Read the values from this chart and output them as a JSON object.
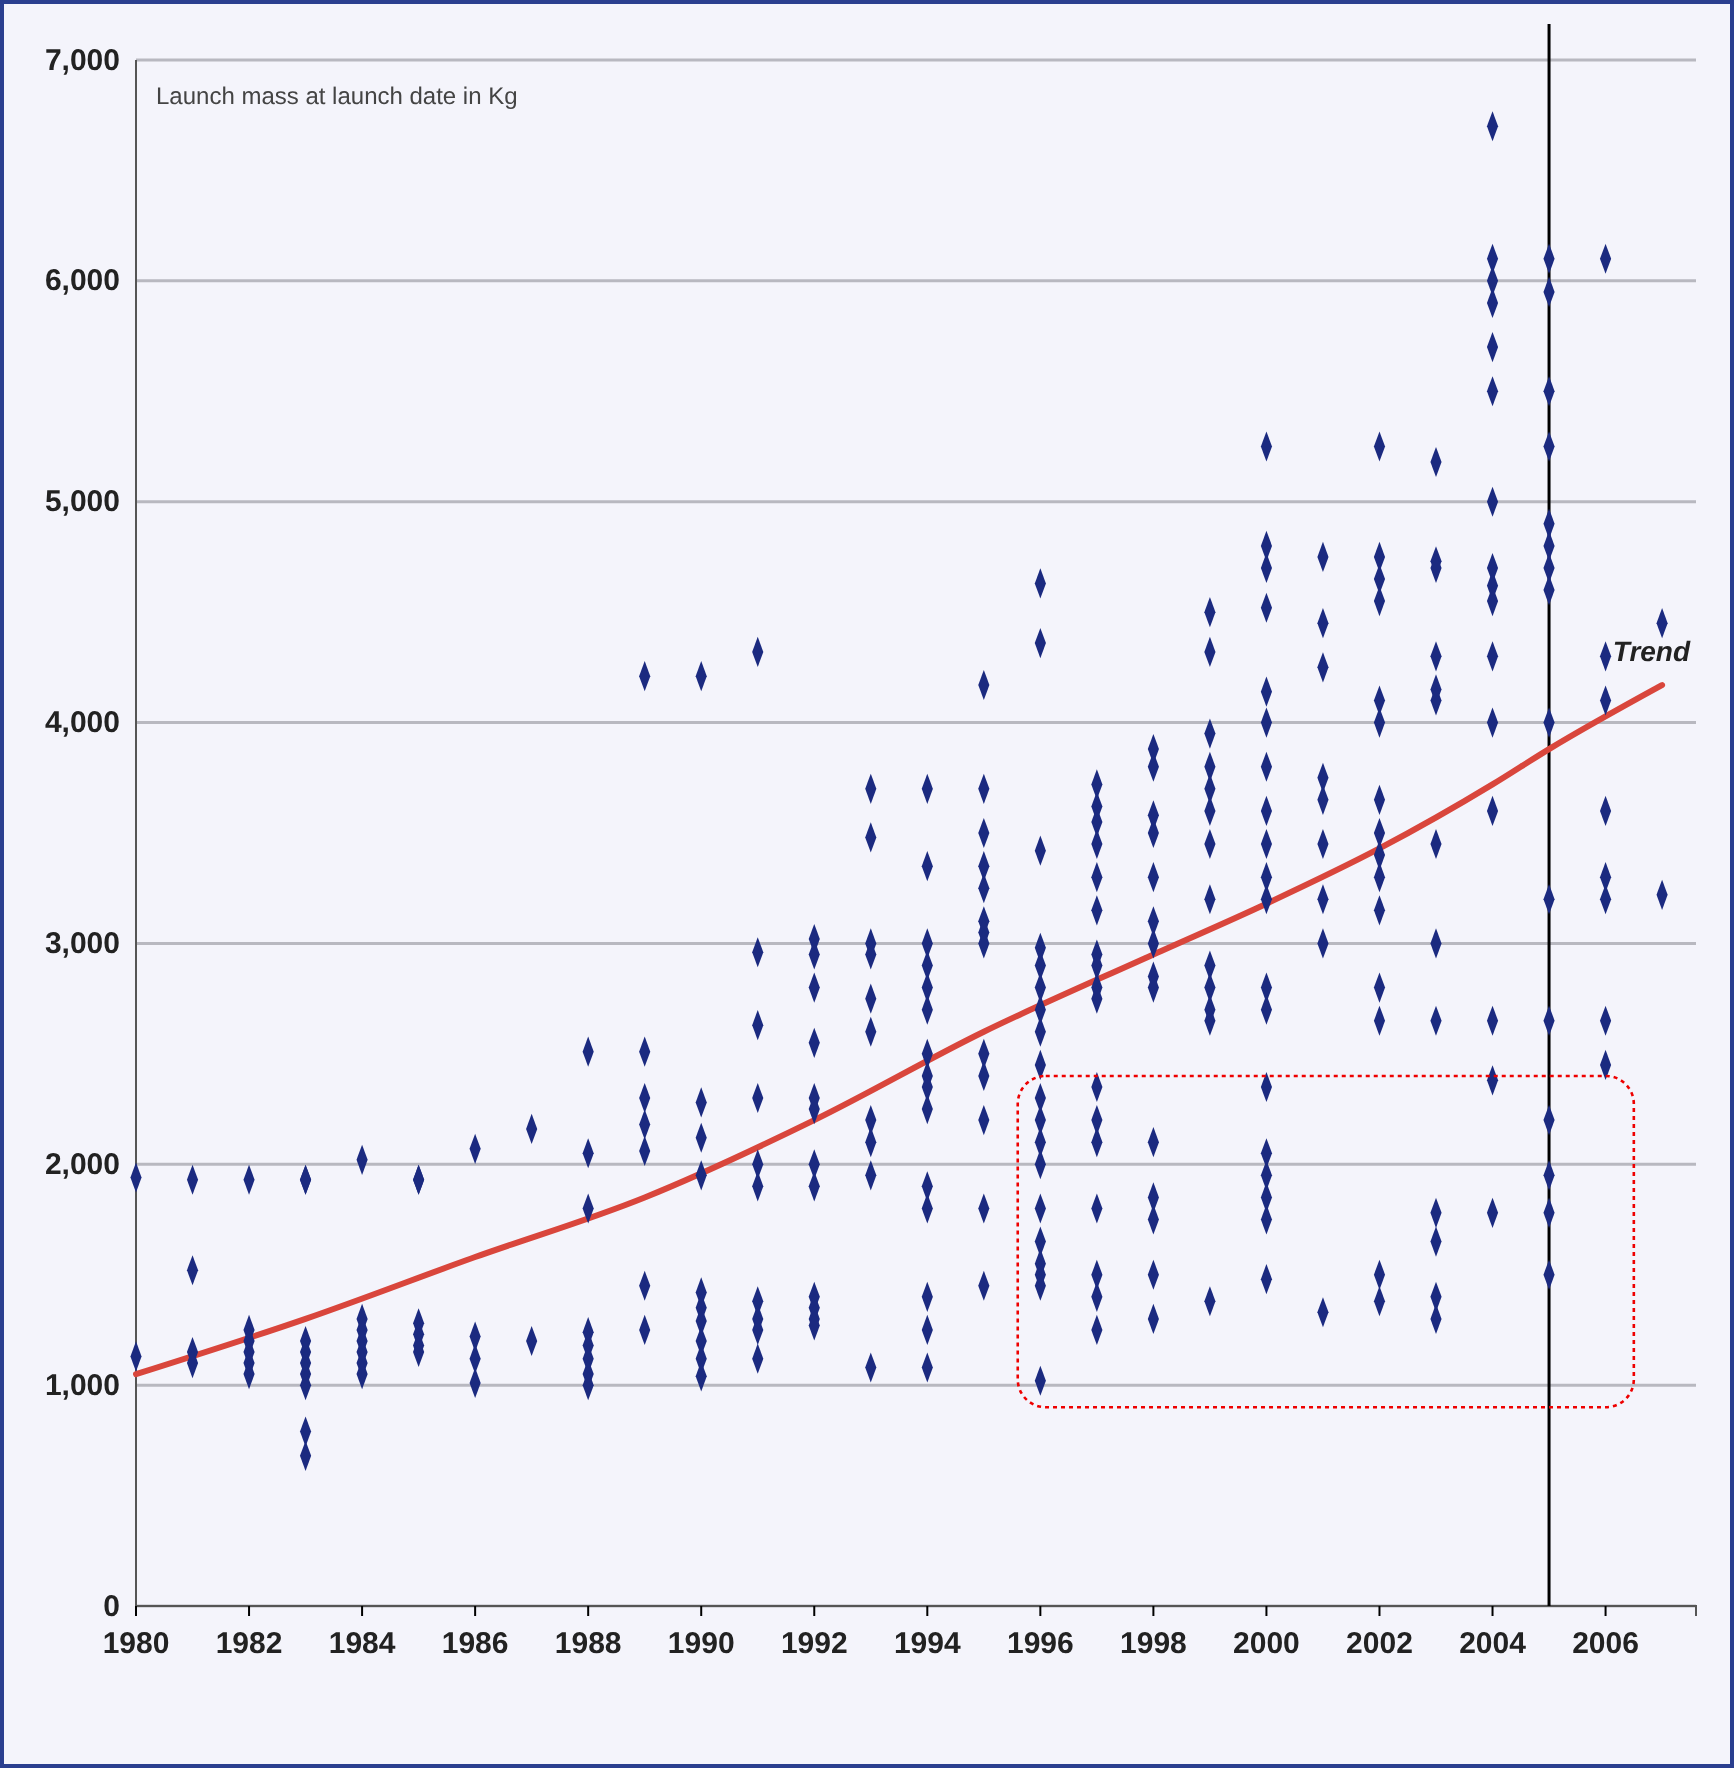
{
  "chart_data": {
    "type": "scatter",
    "annotations": [
      "Launch mass at launch date in Kg"
    ],
    "xlim": [
      1980,
      2007.6
    ],
    "xticks": [
      1980,
      1982,
      1984,
      1986,
      1988,
      1990,
      1992,
      1994,
      1996,
      1998,
      2000,
      2002,
      2004,
      2006
    ],
    "ylim": [
      0,
      7000
    ],
    "yticks": [
      {
        "value": 0,
        "label": "0"
      },
      {
        "value": 1000,
        "label": "1,000"
      },
      {
        "value": 2000,
        "label": "2,000"
      },
      {
        "value": 3000,
        "label": "3,000"
      },
      {
        "value": 4000,
        "label": "4,000"
      },
      {
        "value": 5000,
        "label": "5,000"
      },
      {
        "value": 6000,
        "label": "6,000"
      },
      {
        "value": 7000,
        "label": "7,000"
      }
    ],
    "grid": "y",
    "legend": false,
    "ref_lines": [
      {
        "axis": "x",
        "value": 2005,
        "color": "#000000"
      }
    ],
    "series": [
      {
        "color": "#1b2a80",
        "marker": "diamond",
        "x": [
          1980,
          1980,
          1981,
          1981,
          1981,
          1981,
          1982,
          1982,
          1982,
          1982,
          1982,
          1982,
          1983,
          1983,
          1983,
          1983,
          1983,
          1983,
          1983,
          1983,
          1983,
          1984,
          1984,
          1984,
          1984,
          1984,
          1984,
          1984,
          1985,
          1985,
          1985,
          1985,
          1985,
          1985,
          1986,
          1986,
          1986,
          1986,
          1987,
          1987,
          1988,
          1988,
          1988,
          1988,
          1988,
          1988,
          1988,
          1988,
          1989,
          1989,
          1989,
          1989,
          1989,
          1989,
          1989,
          1990,
          1990,
          1990,
          1990,
          1990,
          1990,
          1990,
          1990,
          1990,
          1990,
          1991,
          1991,
          1991,
          1991,
          1991,
          1991,
          1991,
          1991,
          1991,
          1991,
          1992,
          1992,
          1992,
          1992,
          1992,
          1992,
          1992,
          1992,
          1992,
          1992,
          1992,
          1992,
          1993,
          1993,
          1993,
          1993,
          1993,
          1993,
          1993,
          1993,
          1993,
          1993,
          1994,
          1994,
          1994,
          1994,
          1994,
          1994,
          1994,
          1994,
          1994,
          1994,
          1994,
          1994,
          1994,
          1994,
          1994,
          1995,
          1995,
          1995,
          1995,
          1995,
          1995,
          1995,
          1995,
          1995,
          1995,
          1995,
          1995,
          1995,
          1996,
          1996,
          1996,
          1996,
          1996,
          1996,
          1996,
          1996,
          1996,
          1996,
          1996,
          1996,
          1996,
          1996,
          1996,
          1996,
          1996,
          1996,
          1996,
          1997,
          1997,
          1997,
          1997,
          1997,
          1997,
          1997,
          1997,
          1997,
          1997,
          1997,
          1997,
          1997,
          1997,
          1997,
          1997,
          1997,
          1998,
          1998,
          1998,
          1998,
          1998,
          1998,
          1998,
          1998,
          1998,
          1998,
          1998,
          1998,
          1998,
          1998,
          1999,
          1999,
          1999,
          1999,
          1999,
          1999,
          1999,
          1999,
          1999,
          1999,
          1999,
          1999,
          1999,
          2000,
          2000,
          2000,
          2000,
          2000,
          2000,
          2000,
          2000,
          2000,
          2000,
          2000,
          2000,
          2000,
          2000,
          2000,
          2000,
          2000,
          2000,
          2000,
          2001,
          2001,
          2001,
          2001,
          2001,
          2001,
          2001,
          2001,
          2001,
          2002,
          2002,
          2002,
          2002,
          2002,
          2002,
          2002,
          2002,
          2002,
          2002,
          2002,
          2002,
          2002,
          2002,
          2002,
          2003,
          2003,
          2003,
          2003,
          2003,
          2003,
          2003,
          2003,
          2003,
          2003,
          2003,
          2003,
          2003,
          2004,
          2004,
          2004,
          2004,
          2004,
          2004,
          2004,
          2004,
          2004,
          2004,
          2004,
          2004,
          2004,
          2004,
          2004,
          2004,
          2005,
          2005,
          2005,
          2005,
          2005,
          2005,
          2005,
          2005,
          2005,
          2005,
          2005,
          2005,
          2005,
          2005,
          2005,
          2006,
          2006,
          2006,
          2006,
          2006,
          2006,
          2006,
          2006,
          2007,
          2007
        ],
        "values": [
          1940,
          1130,
          1930,
          1520,
          1150,
          1100,
          1930,
          1250,
          1200,
          1150,
          1100,
          1050,
          1930,
          1200,
          1150,
          1100,
          1050,
          1000,
          790,
          680,
          1930,
          1300,
          1250,
          1200,
          1150,
          1100,
          1050,
          2020,
          1930,
          1280,
          1230,
          1180,
          1150,
          1930,
          1220,
          1120,
          1010,
          2070,
          1200,
          2160,
          2050,
          1800,
          1240,
          1180,
          1120,
          1050,
          1000,
          2510,
          2300,
          2180,
          2060,
          1450,
          1250,
          4210,
          2510,
          2280,
          2120,
          1950,
          1420,
          1350,
          1290,
          1200,
          1120,
          1040,
          4210,
          2960,
          2630,
          2300,
          2000,
          1900,
          1380,
          1300,
          1250,
          1120,
          4320,
          3020,
          2950,
          2800,
          2550,
          2300,
          2250,
          2000,
          1900,
          1400,
          1350,
          1300,
          1270,
          3700,
          3480,
          3000,
          2950,
          2750,
          2600,
          2200,
          2100,
          1950,
          1080,
          3700,
          3350,
          3000,
          2900,
          2800,
          2700,
          2500,
          2400,
          2350,
          2250,
          1900,
          1800,
          1400,
          1250,
          1080,
          4170,
          3700,
          3500,
          3350,
          3250,
          3100,
          3050,
          3000,
          2500,
          2400,
          2200,
          1800,
          1450,
          4630,
          4360,
          3420,
          2980,
          2900,
          2800,
          2700,
          2600,
          2450,
          2300,
          2200,
          2100,
          2000,
          1800,
          1650,
          1550,
          1500,
          1450,
          1020,
          3720,
          3620,
          3550,
          3450,
          3300,
          3150,
          2950,
          2900,
          2800,
          2750,
          2350,
          2200,
          2100,
          1800,
          1500,
          1400,
          1250,
          3880,
          3800,
          3580,
          3500,
          3300,
          3100,
          3000,
          2850,
          2800,
          2100,
          1850,
          1750,
          1500,
          1300,
          4500,
          4320,
          3950,
          3800,
          3700,
          3600,
          3450,
          3200,
          2900,
          2800,
          2700,
          2650,
          1380,
          5250,
          4800,
          4700,
          4520,
          4140,
          4000,
          3800,
          3600,
          3450,
          3300,
          3200,
          2800,
          2700,
          2350,
          2050,
          1950,
          1850,
          1750,
          1480,
          4750,
          4450,
          4250,
          3750,
          3650,
          3450,
          3200,
          3000,
          1330,
          5250,
          4750,
          4650,
          4550,
          4100,
          4000,
          3650,
          3500,
          3400,
          3300,
          3150,
          2800,
          2650,
          1500,
          1380,
          5180,
          4730,
          4700,
          4300,
          4150,
          4100,
          3450,
          3000,
          2650,
          1780,
          1650,
          1400,
          1300,
          6700,
          6100,
          6000,
          5900,
          5700,
          5500,
          5000,
          4700,
          4620,
          4550,
          4300,
          4000,
          3600,
          2650,
          2380,
          1780,
          6100,
          5950,
          5500,
          5250,
          4900,
          4800,
          4700,
          4600,
          4000,
          3200,
          2650,
          2200,
          1950,
          1780,
          1500,
          6100,
          4300,
          4100,
          3600,
          3300,
          3200,
          2650,
          2450,
          4450,
          3220
        ]
      },
      {
        "type": "line",
        "name": "Trend",
        "color": "#d9463c",
        "marker": "none",
        "line_style": "solid",
        "x": [
          1980,
          1983,
          1986,
          1989,
          1992,
          1995,
          1998,
          2000,
          2002,
          2004,
          2005,
          2007
        ],
        "values": [
          1050,
          1300,
          1580,
          1850,
          2200,
          2600,
          2950,
          3180,
          3430,
          3720,
          3880,
          4170
        ]
      }
    ]
  }
}
